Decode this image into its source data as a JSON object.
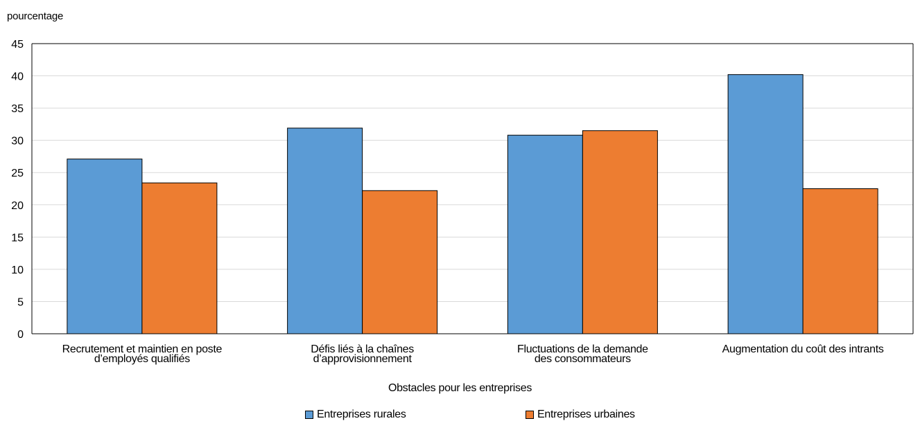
{
  "chart_data": {
    "type": "bar",
    "ylabel": "pourcentage",
    "xlabel": "Obstacles pour les entreprises",
    "categories": [
      [
        "Recrutement et maintien en poste",
        "d’employés qualifiés"
      ],
      [
        "Défis liés à la chaînes",
        "d’approvisionnement"
      ],
      [
        "Fluctuations de la demande",
        "des consommateurs"
      ],
      [
        "Augmentation du coût des intrants"
      ]
    ],
    "series": [
      {
        "name": "Entreprises rurales",
        "color": "#5B9BD5",
        "values": [
          27.1,
          31.9,
          30.8,
          40.2
        ]
      },
      {
        "name": "Entreprises urbaines",
        "color": "#ED7D31",
        "values": [
          23.4,
          22.2,
          31.5,
          22.5
        ]
      }
    ],
    "ylim": [
      0,
      45
    ],
    "yticks": [
      0,
      5,
      10,
      15,
      20,
      25,
      30,
      35,
      40,
      45
    ],
    "grid": true,
    "legend": "bottom"
  }
}
